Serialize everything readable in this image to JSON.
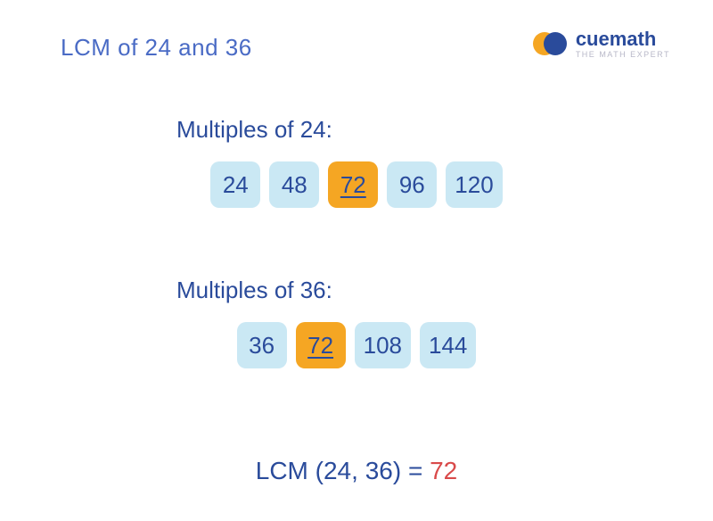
{
  "colors": {
    "title": "#4a6bc5",
    "section_label": "#2a4b9b",
    "chip_bg": "#cae8f4",
    "chip_text": "#2a4b9b",
    "highlight_bg": "#f5a623",
    "highlight_text": "#2a4b9b",
    "result_text": "#2a4b9b",
    "result_answer": "#d94a4a",
    "logo_text": "#2a4b9b",
    "logo_sub": "#b8b8c8",
    "logo_orange": "#f5a623",
    "logo_blue": "#2a4b9b"
  },
  "title": "LCM of 24 and 36",
  "logo": {
    "main": "cuemath",
    "sub": "THE MATH EXPERT"
  },
  "section1": {
    "label": "Multiples of 24:",
    "chips": [
      {
        "value": "24",
        "highlight": false
      },
      {
        "value": "48",
        "highlight": false
      },
      {
        "value": "72",
        "highlight": true
      },
      {
        "value": "96",
        "highlight": false
      },
      {
        "value": "120",
        "highlight": false
      }
    ]
  },
  "section2": {
    "label": "Multiples of 36:",
    "chips": [
      {
        "value": "36",
        "highlight": false
      },
      {
        "value": "72",
        "highlight": true
      },
      {
        "value": "108",
        "highlight": false
      },
      {
        "value": "144",
        "highlight": false
      }
    ]
  },
  "result": {
    "prefix": "LCM (24, 36) = ",
    "answer": "72"
  }
}
